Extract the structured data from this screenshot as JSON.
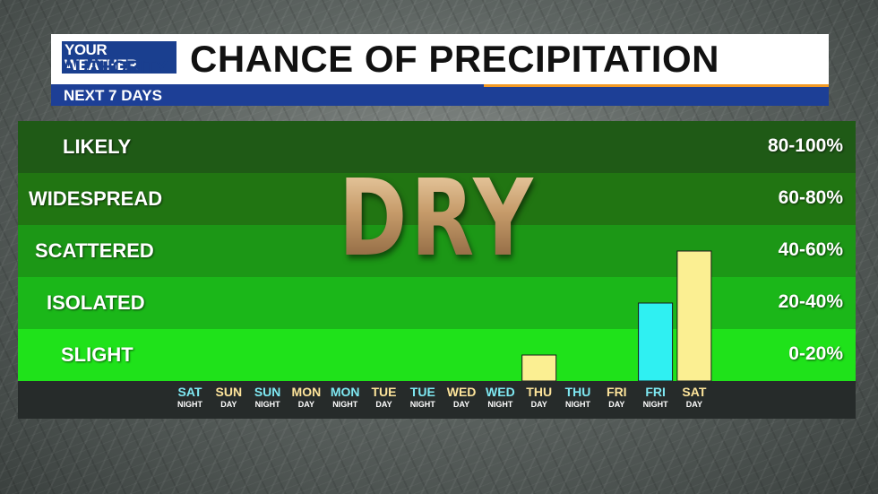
{
  "header": {
    "logo_top": "YOUR WEATHER",
    "logo_bottom": "AUTHORITY",
    "title": "CHANCE OF PRECIPITATION",
    "subtitle": "NEXT 7 DAYS"
  },
  "overlay_text": "DRY",
  "colors": {
    "day_label": "#fde49a",
    "night_label": "#7ee8f2",
    "day_bar": "#fbef92",
    "night_bar": "#2ff0f2"
  },
  "chart_data": {
    "type": "bar",
    "categories": [
      {
        "day": "SAT",
        "part": "NIGHT"
      },
      {
        "day": "SUN",
        "part": "DAY"
      },
      {
        "day": "SUN",
        "part": "NIGHT"
      },
      {
        "day": "MON",
        "part": "DAY"
      },
      {
        "day": "MON",
        "part": "NIGHT"
      },
      {
        "day": "TUE",
        "part": "DAY"
      },
      {
        "day": "TUE",
        "part": "NIGHT"
      },
      {
        "day": "WED",
        "part": "DAY"
      },
      {
        "day": "WED",
        "part": "NIGHT"
      },
      {
        "day": "THU",
        "part": "DAY"
      },
      {
        "day": "THU",
        "part": "NIGHT"
      },
      {
        "day": "FRI",
        "part": "DAY"
      },
      {
        "day": "FRI",
        "part": "NIGHT"
      },
      {
        "day": "SAT",
        "part": "DAY"
      }
    ],
    "values": [
      0,
      0,
      0,
      0,
      0,
      0,
      0,
      0,
      0,
      10,
      0,
      0,
      30,
      50
    ],
    "ylim": [
      0,
      100
    ],
    "bands": [
      {
        "label": "LIKELY",
        "range": "80-100%",
        "color": "#1f5a16"
      },
      {
        "label": "WIDESPREAD",
        "range": "60-80%",
        "color": "#217512"
      },
      {
        "label": "SCATTERED",
        "range": "40-60%",
        "color": "#1c9716"
      },
      {
        "label": "ISOLATED",
        "range": "20-40%",
        "color": "#1bb719"
      },
      {
        "label": "SLIGHT",
        "range": "0-20%",
        "color": "#1fe21a"
      }
    ]
  }
}
